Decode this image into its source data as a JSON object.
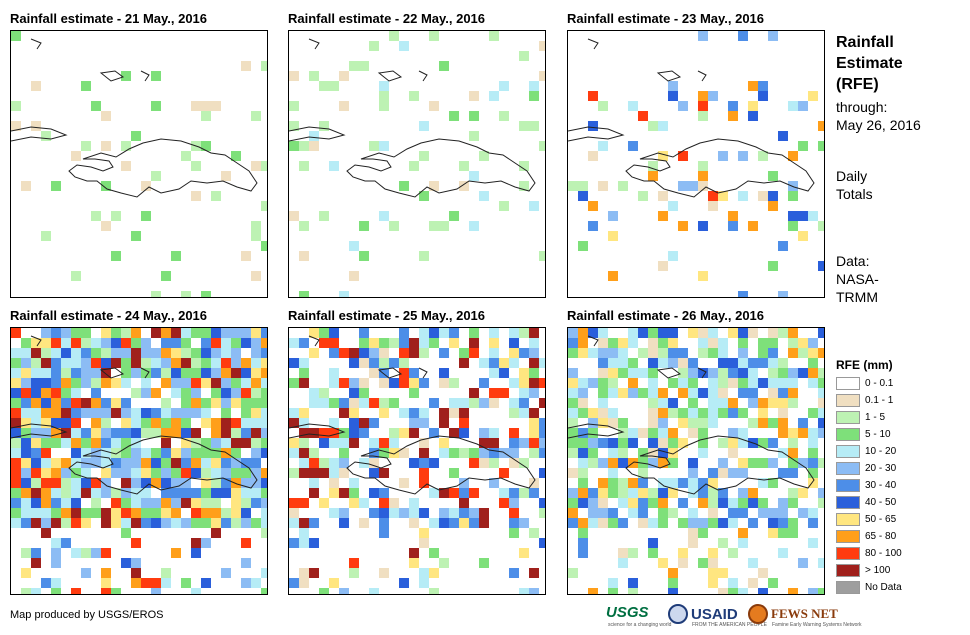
{
  "panels": [
    {
      "title": "Rainfall estimate - 21 May., 2016"
    },
    {
      "title": "Rainfall estimate - 22 May., 2016"
    },
    {
      "title": "Rainfall estimate - 23 May., 2016"
    },
    {
      "title": "Rainfall estimate - 24 May., 2016"
    },
    {
      "title": "Rainfall estimate - 25 May., 2016"
    },
    {
      "title": "Rainfall estimate - 26 May., 2016"
    }
  ],
  "side": {
    "title_lines": [
      "Rainfall",
      "Estimate",
      "(RFE)"
    ],
    "through_lines": [
      "through:",
      "May 26, 2016"
    ],
    "totals_lines": [
      "Daily",
      "Totals"
    ],
    "data_lines": [
      "Data:",
      "NASA-",
      "TRMM"
    ]
  },
  "legend": {
    "title": "RFE (mm)",
    "items": [
      {
        "label": "0 - 0.1",
        "color": "#ffffff"
      },
      {
        "label": "0.1 - 1",
        "color": "#f0dfc1"
      },
      {
        "label": "1 - 5",
        "color": "#bdf2b3"
      },
      {
        "label": "5 - 10",
        "color": "#7ee07a"
      },
      {
        "label": "10 - 20",
        "color": "#b6ecf6"
      },
      {
        "label": "20 - 30",
        "color": "#8cbcf4"
      },
      {
        "label": "30 - 40",
        "color": "#4d8ee8"
      },
      {
        "label": "40 - 50",
        "color": "#2a5fdb"
      },
      {
        "label": "50 - 65",
        "color": "#ffe680"
      },
      {
        "label": "65 - 80",
        "color": "#ff9f1a"
      },
      {
        "label": "80 - 100",
        "color": "#ff3b0f"
      },
      {
        "label": "> 100",
        "color": "#a0201c"
      },
      {
        "label": "No Data",
        "color": "#9e9e9e"
      }
    ]
  },
  "footer": {
    "credit": "Map produced by USGS/EROS"
  },
  "logos": {
    "usgs": "USGS",
    "usgs_tagline": "science for a changing world",
    "usaid": "USAID",
    "usaid_tagline": "FROM THE AMERICAN PEOPLE",
    "fews": "FEWS NET",
    "fews_tagline": "Famine Early Warning Systems Network"
  }
}
